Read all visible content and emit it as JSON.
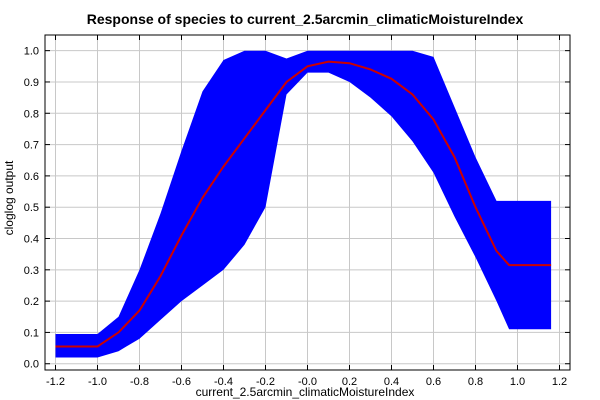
{
  "chart_data": {
    "type": "area",
    "title": "Response of species to current_2.5arcmin_climaticMoistureIndex",
    "xlabel": "current_2.5arcmin_climaticMoistureIndex",
    "ylabel": "cloglog output",
    "xlim": [
      -1.25,
      1.25
    ],
    "ylim": [
      -0.02,
      1.05
    ],
    "x_ticks": [
      -1.2,
      -1.0,
      -0.8,
      -0.6,
      -0.4,
      -0.2,
      0.0,
      0.2,
      0.4,
      0.6,
      0.8,
      1.0,
      1.2
    ],
    "x_tick_labels": [
      "-1.2",
      "-1.0",
      "-0.8",
      "-0.6",
      "-0.4",
      "-0.2",
      "-0.0",
      "0.2",
      "0.4",
      "0.6",
      "0.8",
      "1.0",
      "1.2"
    ],
    "y_ticks": [
      0.0,
      0.1,
      0.2,
      0.3,
      0.4,
      0.5,
      0.6,
      0.7,
      0.8,
      0.9,
      1.0
    ],
    "y_tick_labels": [
      "0.0",
      "0.1",
      "0.2",
      "0.3",
      "0.4",
      "0.5",
      "0.6",
      "0.7",
      "0.8",
      "0.9",
      "1.0"
    ],
    "grid": true,
    "colors": {
      "band": "#0000ff",
      "line": "#cc0000",
      "grid": "#c8c8c8"
    },
    "series": [
      {
        "x": [
          -1.2,
          -1.0,
          -0.9,
          -0.8,
          -0.7,
          -0.6,
          -0.5,
          -0.4,
          -0.3,
          -0.2,
          -0.1,
          0.0,
          0.1,
          0.2,
          0.3,
          0.4,
          0.5,
          0.6,
          0.7,
          0.8,
          0.9,
          0.96,
          1.0,
          1.16
        ],
        "values": [
          0.055,
          0.055,
          0.1,
          0.17,
          0.28,
          0.41,
          0.53,
          0.63,
          0.72,
          0.81,
          0.9,
          0.95,
          0.965,
          0.96,
          0.94,
          0.91,
          0.86,
          0.78,
          0.66,
          0.5,
          0.36,
          0.315,
          0.315,
          0.315
        ]
      },
      {
        "x": [
          -1.2,
          -1.0,
          -0.9,
          -0.8,
          -0.7,
          -0.6,
          -0.5,
          -0.4,
          -0.3,
          -0.2,
          -0.1,
          0.0,
          0.1,
          0.2,
          0.3,
          0.4,
          0.5,
          0.6,
          0.7,
          0.8,
          0.9,
          0.96,
          1.0,
          1.16
        ],
        "values": [
          0.02,
          0.02,
          0.04,
          0.08,
          0.14,
          0.2,
          0.25,
          0.3,
          0.38,
          0.5,
          0.86,
          0.93,
          0.93,
          0.9,
          0.85,
          0.79,
          0.71,
          0.61,
          0.47,
          0.34,
          0.2,
          0.11,
          0.11,
          0.11
        ]
      },
      {
        "x": [
          -1.2,
          -1.0,
          -0.9,
          -0.8,
          -0.7,
          -0.6,
          -0.5,
          -0.4,
          -0.3,
          -0.2,
          -0.1,
          0.0,
          0.1,
          0.2,
          0.3,
          0.4,
          0.5,
          0.6,
          0.7,
          0.8,
          0.9,
          0.96,
          1.0,
          1.16
        ],
        "values": [
          0.095,
          0.095,
          0.15,
          0.3,
          0.48,
          0.68,
          0.87,
          0.97,
          1.0,
          1.0,
          0.975,
          1.0,
          1.0,
          1.0,
          1.0,
          1.0,
          1.0,
          0.98,
          0.82,
          0.66,
          0.52,
          0.52,
          0.52,
          0.52
        ]
      }
    ]
  }
}
